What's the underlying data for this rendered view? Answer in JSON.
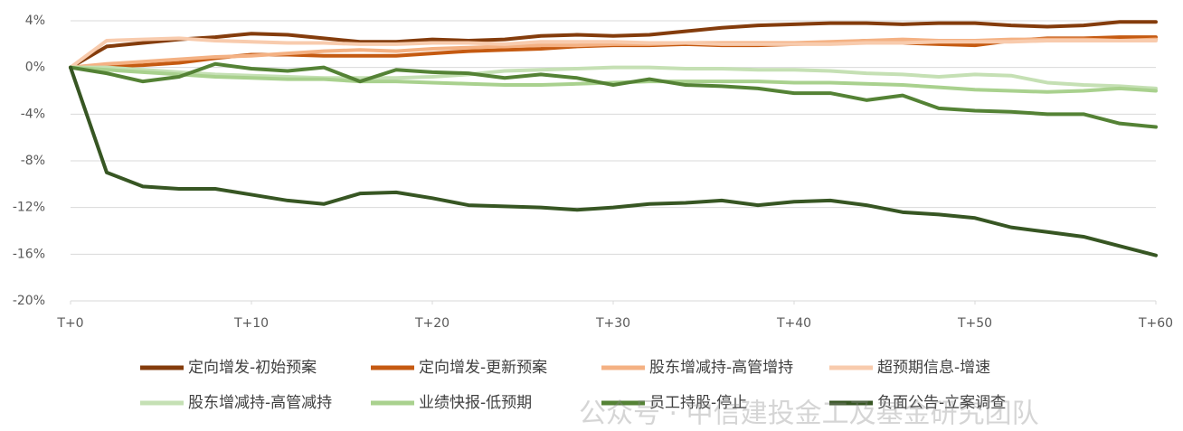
{
  "chart_data": {
    "type": "line",
    "x": [
      0,
      2,
      4,
      6,
      8,
      10,
      12,
      14,
      16,
      18,
      20,
      22,
      24,
      26,
      28,
      30,
      32,
      34,
      36,
      38,
      40,
      42,
      44,
      46,
      48,
      50,
      52,
      54,
      56,
      58,
      60
    ],
    "xlim": [
      0,
      60
    ],
    "xticks": [
      {
        "value": 0,
        "label": "T+0"
      },
      {
        "value": 10,
        "label": "T+10"
      },
      {
        "value": 20,
        "label": "T+20"
      },
      {
        "value": 30,
        "label": "T+30"
      },
      {
        "value": 40,
        "label": "T+40"
      },
      {
        "value": 50,
        "label": "T+50"
      },
      {
        "value": 60,
        "label": "T+60"
      }
    ],
    "ylim": [
      -20,
      4
    ],
    "yticks": [
      {
        "value": 4,
        "label": "4%"
      },
      {
        "value": 0,
        "label": "0%"
      },
      {
        "value": -4,
        "label": "-4%"
      },
      {
        "value": -8,
        "label": "-8%"
      },
      {
        "value": -12,
        "label": "-12%"
      },
      {
        "value": -16,
        "label": "-16%"
      },
      {
        "value": -20,
        "label": "-20%"
      }
    ],
    "grid": true,
    "legend": "bottom",
    "watermark": "公众号 · 中信建投金工及基金研究团队",
    "series": [
      {
        "name": "定向增发-初始预案",
        "color": "#843c0c",
        "values": [
          0,
          1.8,
          2.1,
          2.4,
          2.6,
          2.9,
          2.8,
          2.5,
          2.2,
          2.2,
          2.4,
          2.3,
          2.4,
          2.7,
          2.8,
          2.7,
          2.8,
          3.1,
          3.4,
          3.6,
          3.7,
          3.8,
          3.8,
          3.7,
          3.8,
          3.8,
          3.6,
          3.5,
          3.6,
          3.9,
          3.9
        ]
      },
      {
        "name": "定向增发-更新预案",
        "color": "#c55a11",
        "values": [
          0,
          0.1,
          0.2,
          0.4,
          0.8,
          1.1,
          1.1,
          1.0,
          1.0,
          1.0,
          1.2,
          1.4,
          1.5,
          1.6,
          1.8,
          1.9,
          1.9,
          2.0,
          1.9,
          1.9,
          2.0,
          2.1,
          2.3,
          2.1,
          2.0,
          1.9,
          2.3,
          2.5,
          2.5,
          2.6,
          2.6
        ]
      },
      {
        "name": "股东增减持-高管增持",
        "color": "#f4b183",
        "values": [
          0,
          0.3,
          0.5,
          0.7,
          0.9,
          1.0,
          1.2,
          1.4,
          1.5,
          1.4,
          1.6,
          1.7,
          1.8,
          1.9,
          1.9,
          2.0,
          2.0,
          2.1,
          2.1,
          2.1,
          2.1,
          2.2,
          2.3,
          2.4,
          2.3,
          2.3,
          2.4,
          2.4,
          2.4,
          2.3,
          2.4
        ]
      },
      {
        "name": "超预期信息-增速",
        "color": "#f8cbad",
        "values": [
          0,
          2.3,
          2.4,
          2.5,
          2.3,
          2.2,
          2.1,
          2.1,
          2.0,
          2.0,
          2.1,
          2.1,
          2.0,
          2.2,
          2.2,
          2.2,
          2.1,
          2.1,
          2.0,
          2.0,
          2.0,
          2.0,
          2.1,
          2.1,
          2.2,
          2.2,
          2.2,
          2.3,
          2.3,
          2.3,
          2.3
        ]
      },
      {
        "name": "股东增减持-高管减持",
        "color": "#c5e0b4",
        "values": [
          0,
          0,
          -0.2,
          -0.4,
          -0.6,
          -0.7,
          -0.8,
          -0.9,
          -0.9,
          -0.9,
          -0.8,
          -0.6,
          -0.3,
          -0.2,
          -0.1,
          0,
          0,
          -0.1,
          -0.1,
          -0.2,
          -0.2,
          -0.3,
          -0.5,
          -0.6,
          -0.8,
          -0.6,
          -0.7,
          -1.3,
          -1.5,
          -1.6,
          -1.8
        ]
      },
      {
        "name": "业绩快报-低预期",
        "color": "#a9d18e",
        "values": [
          0,
          -0.2,
          -0.4,
          -0.6,
          -0.8,
          -0.9,
          -1.0,
          -1.0,
          -1.2,
          -1.2,
          -1.3,
          -1.4,
          -1.5,
          -1.5,
          -1.4,
          -1.3,
          -1.2,
          -1.2,
          -1.2,
          -1.2,
          -1.3,
          -1.3,
          -1.4,
          -1.5,
          -1.7,
          -1.9,
          -2.0,
          -2.1,
          -2.0,
          -1.8,
          -2.0
        ]
      },
      {
        "name": "员工持股-停止",
        "color": "#548235",
        "values": [
          0,
          -0.5,
          -1.2,
          -0.8,
          0.3,
          -0.1,
          -0.3,
          0,
          -1.2,
          -0.2,
          -0.4,
          -0.5,
          -0.9,
          -0.6,
          -0.9,
          -1.5,
          -1.0,
          -1.5,
          -1.6,
          -1.8,
          -2.2,
          -2.2,
          -2.8,
          -2.4,
          -3.5,
          -3.7,
          -3.8,
          -4.0,
          -4.0,
          -4.8,
          -5.1
        ]
      },
      {
        "name": "负面公告-立案调查",
        "color": "#375623",
        "values": [
          0,
          -9.0,
          -10.2,
          -10.4,
          -10.4,
          -10.9,
          -11.4,
          -11.7,
          -10.8,
          -10.7,
          -11.2,
          -11.8,
          -11.9,
          -12.0,
          -12.2,
          -12.0,
          -11.7,
          -11.6,
          -11.4,
          -11.8,
          -11.5,
          -11.4,
          -11.8,
          -12.4,
          -12.6,
          -12.9,
          -13.7,
          -14.1,
          -14.5,
          -15.3,
          -16.1
        ]
      }
    ]
  }
}
